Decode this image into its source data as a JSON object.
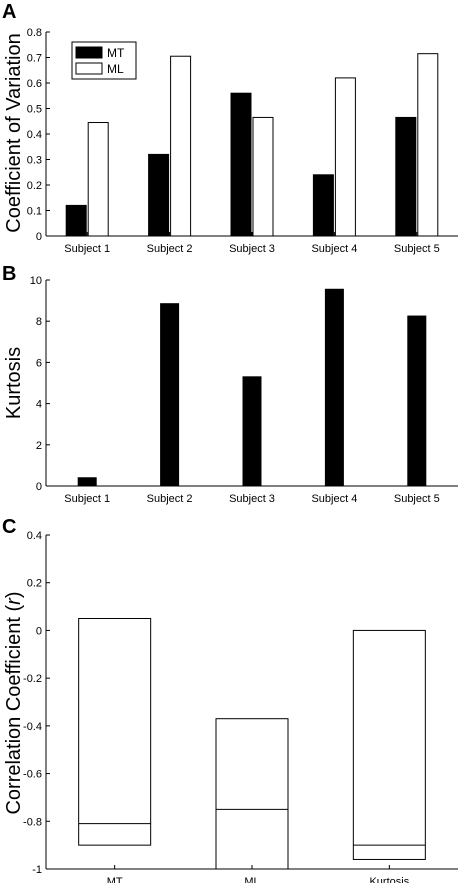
{
  "chart_data": [
    {
      "panel_label": "A",
      "type": "bar",
      "ylabel": "Coefficient of Variation",
      "xlabel": "",
      "categories": [
        "Subject 1",
        "Subject 2",
        "Subject 3",
        "Subject 4",
        "Subject 5"
      ],
      "series": [
        {
          "name": "MT",
          "values": [
            0.12,
            0.32,
            0.56,
            0.24,
            0.465
          ],
          "color": "#000000"
        },
        {
          "name": "ML",
          "values": [
            0.445,
            0.705,
            0.465,
            0.62,
            0.715
          ],
          "color": "#ffffff"
        }
      ],
      "ylim": [
        0,
        0.8
      ],
      "yticks": [
        "0",
        "0.1",
        "0.2",
        "0.3",
        "0.4",
        "0.5",
        "0.6",
        "0.7",
        "0.8"
      ],
      "legend": "top-left",
      "grid": false
    },
    {
      "panel_label": "B",
      "type": "bar",
      "ylabel": "Kurtosis",
      "xlabel": "",
      "categories": [
        "Subject 1",
        "Subject 2",
        "Subject 3",
        "Subject 4",
        "Subject 5"
      ],
      "series": [
        {
          "name": "",
          "values": [
            0.4,
            8.85,
            5.3,
            9.55,
            8.25
          ],
          "color": "#000000"
        }
      ],
      "ylim": [
        0,
        10
      ],
      "yticks": [
        "0",
        "2",
        "4",
        "6",
        "8",
        "10"
      ],
      "grid": false
    },
    {
      "panel_label": "C",
      "type": "bar",
      "ylabel_prefix": "Correlation Coefficient (",
      "ylabel_var": "r",
      "ylabel_suffix": ")",
      "xlabel": "",
      "categories": [
        "MT",
        "ML",
        "Kurtosis"
      ],
      "bars": [
        {
          "low": -0.9,
          "high": 0.05,
          "mid": -0.81
        },
        {
          "low": -1.0,
          "high": -0.37,
          "mid": -0.75
        },
        {
          "low": -0.96,
          "high": 0.0,
          "mid": -0.9
        }
      ],
      "ylim": [
        -1,
        0.4
      ],
      "yticks": [
        "-1",
        "-0.8",
        "-0.6",
        "-0.4",
        "-0.2",
        "0",
        "0.2",
        "0.4"
      ],
      "grid": false
    }
  ]
}
